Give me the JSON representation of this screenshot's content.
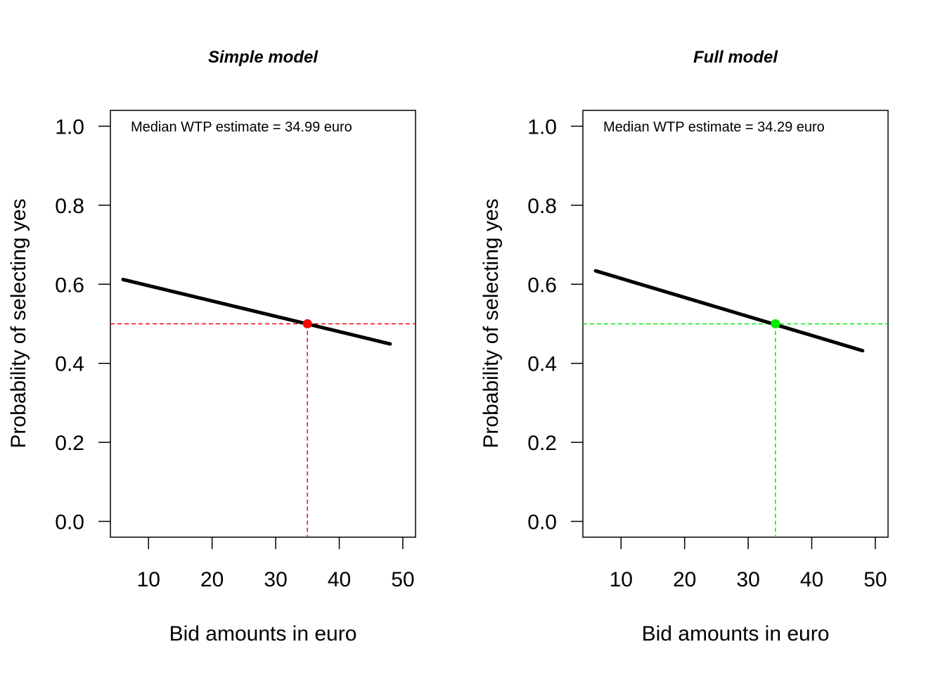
{
  "chart_data": [
    {
      "type": "line",
      "title": "Simple model",
      "xlabel": "Bid amounts in euro",
      "ylabel": "Probability of selecting yes",
      "annotation": "Median WTP estimate = 34.99 euro",
      "xlim": [
        4,
        52
      ],
      "ylim": [
        -0.04,
        1.04
      ],
      "xticks": [
        "10",
        "20",
        "30",
        "40",
        "50"
      ],
      "yticks": [
        "0.0",
        "0.2",
        "0.4",
        "0.6",
        "0.8",
        "1.0"
      ],
      "series": [
        {
          "x": [
            6,
            48
          ],
          "y": [
            0.612,
            0.449
          ]
        }
      ],
      "wtp_point": {
        "x": 34.99,
        "y": 0.5
      },
      "reference_lines": {
        "y": 0.5,
        "x": 34.99,
        "style": "dashed"
      },
      "accent_color": "#ff0000",
      "grid": false
    },
    {
      "type": "line",
      "title": "Full model",
      "xlabel": "Bid amounts in euro",
      "ylabel": "Probability of selecting yes",
      "annotation": "Median WTP estimate = 34.29 euro",
      "xlim": [
        4,
        52
      ],
      "ylim": [
        -0.04,
        1.04
      ],
      "xticks": [
        "10",
        "20",
        "30",
        "40",
        "50"
      ],
      "yticks": [
        "0.0",
        "0.2",
        "0.4",
        "0.6",
        "0.8",
        "1.0"
      ],
      "series": [
        {
          "x": [
            6,
            48
          ],
          "y": [
            0.634,
            0.432
          ]
        }
      ],
      "wtp_point": {
        "x": 34.29,
        "y": 0.5
      },
      "reference_lines": {
        "y": 0.5,
        "x": 34.29,
        "style": "dashed"
      },
      "accent_color": "#00ee00",
      "grid": false
    }
  ]
}
